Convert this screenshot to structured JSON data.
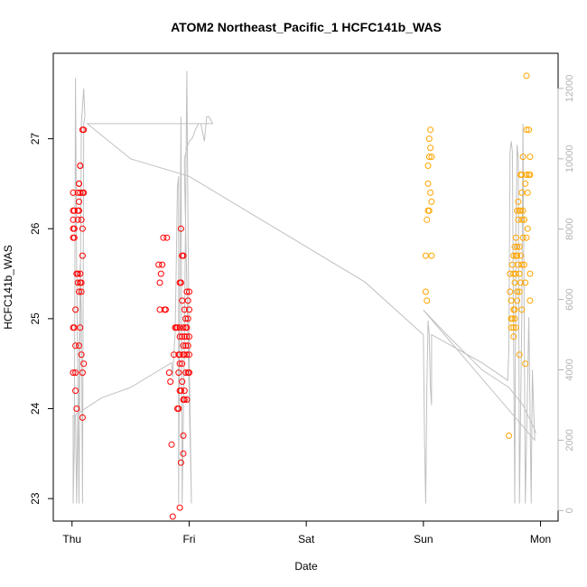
{
  "chart_data": {
    "type": "scatter",
    "title": "ATOM2 Northeast_Pacific_1 HCFC141b_WAS",
    "xlabel": "Date",
    "ylabel": "HCFC141b_WAS",
    "x_tick_labels": [
      "Thu",
      "Fri",
      "Sat",
      "Sun",
      "Mon"
    ],
    "xlim_days": [
      -0.16,
      4.15
    ],
    "ylim": [
      22.75,
      27.95
    ],
    "y_ticks": [
      23,
      24,
      25,
      26,
      27
    ],
    "y2lim": [
      -300,
      13000
    ],
    "y2_ticks": [
      0,
      2000,
      4000,
      6000,
      8000,
      10000,
      12000
    ],
    "grid": false,
    "legend": "none",
    "colors": {
      "red_series": "#ff0000",
      "orange_series": "#ffa500",
      "altitude_line": "#c0c0c0",
      "axis": "#000000",
      "right_axis": "#b3b3b3"
    },
    "series": [
      {
        "color": "red",
        "points": [
          [
            0.01,
            26.4
          ],
          [
            0.01,
            26.2
          ],
          [
            0.01,
            26.1
          ],
          [
            0.01,
            26.0
          ],
          [
            0.01,
            25.9
          ],
          [
            0.01,
            24.9
          ],
          [
            0.01,
            24.4
          ],
          [
            0.02,
            26.2
          ],
          [
            0.02,
            26.0
          ],
          [
            0.02,
            25.9
          ],
          [
            0.02,
            24.9
          ],
          [
            0.03,
            25.1
          ],
          [
            0.03,
            24.7
          ],
          [
            0.03,
            24.4
          ],
          [
            0.03,
            24.2
          ],
          [
            0.04,
            25.5
          ],
          [
            0.04,
            24.0
          ],
          [
            0.05,
            26.4
          ],
          [
            0.05,
            26.2
          ],
          [
            0.05,
            26.1
          ],
          [
            0.05,
            25.5
          ],
          [
            0.05,
            25.4
          ],
          [
            0.06,
            26.5
          ],
          [
            0.06,
            26.5
          ],
          [
            0.06,
            26.3
          ],
          [
            0.06,
            26.2
          ],
          [
            0.06,
            25.3
          ],
          [
            0.06,
            24.7
          ],
          [
            0.07,
            26.7
          ],
          [
            0.07,
            26.7
          ],
          [
            0.07,
            26.4
          ],
          [
            0.07,
            25.5
          ],
          [
            0.07,
            25.4
          ],
          [
            0.07,
            24.9
          ],
          [
            0.08,
            26.1
          ],
          [
            0.08,
            25.4
          ],
          [
            0.08,
            25.3
          ],
          [
            0.08,
            24.6
          ],
          [
            0.09,
            27.1
          ],
          [
            0.09,
            26.4
          ],
          [
            0.09,
            26.0
          ],
          [
            0.09,
            25.7
          ],
          [
            0.09,
            24.4
          ],
          [
            0.09,
            23.9
          ],
          [
            0.1,
            27.1
          ],
          [
            0.1,
            26.4
          ],
          [
            0.1,
            24.5
          ],
          [
            0.74,
            25.6
          ],
          [
            0.75,
            25.4
          ],
          [
            0.75,
            25.1
          ],
          [
            0.76,
            25.5
          ],
          [
            0.77,
            25.6
          ],
          [
            0.78,
            25.9
          ],
          [
            0.79,
            25.1
          ],
          [
            0.8,
            25.1
          ],
          [
            0.81,
            25.9
          ],
          [
            0.83,
            24.4
          ],
          [
            0.84,
            24.3
          ],
          [
            0.85,
            23.6
          ],
          [
            0.86,
            22.8
          ],
          [
            0.87,
            24.6
          ],
          [
            0.88,
            24.9
          ],
          [
            0.9,
            24.0
          ],
          [
            0.91,
            24.0
          ],
          [
            0.91,
            24.4
          ],
          [
            0.91,
            24.6
          ],
          [
            0.92,
            25.4
          ],
          [
            0.92,
            24.8
          ],
          [
            0.92,
            24.9
          ],
          [
            0.92,
            24.5
          ],
          [
            0.92,
            24.2
          ],
          [
            0.92,
            22.9
          ],
          [
            0.93,
            23.4
          ],
          [
            0.93,
            26.0
          ],
          [
            0.93,
            25.4
          ],
          [
            0.93,
            24.2
          ],
          [
            0.94,
            25.7
          ],
          [
            0.94,
            25.2
          ],
          [
            0.94,
            24.8
          ],
          [
            0.94,
            24.5
          ],
          [
            0.94,
            24.3
          ],
          [
            0.95,
            25.7
          ],
          [
            0.95,
            24.9
          ],
          [
            0.95,
            24.7
          ],
          [
            0.95,
            24.6
          ],
          [
            0.95,
            24.1
          ],
          [
            0.95,
            23.7
          ],
          [
            0.95,
            23.5
          ],
          [
            0.96,
            25.1
          ],
          [
            0.96,
            24.8
          ],
          [
            0.96,
            24.6
          ],
          [
            0.96,
            24.2
          ],
          [
            0.97,
            25.0
          ],
          [
            0.97,
            24.7
          ],
          [
            0.97,
            24.4
          ],
          [
            0.98,
            25.3
          ],
          [
            0.98,
            24.9
          ],
          [
            0.98,
            24.8
          ],
          [
            0.98,
            24.6
          ],
          [
            0.98,
            24.1
          ],
          [
            0.99,
            25.2
          ],
          [
            0.99,
            25.0
          ],
          [
            0.99,
            24.7
          ],
          [
            0.99,
            24.4
          ],
          [
            1.0,
            25.3
          ],
          [
            1.0,
            25.1
          ],
          [
            1.0,
            24.8
          ],
          [
            1.0,
            24.6
          ],
          [
            1.0,
            24.4
          ],
          [
            0.89,
            24.9
          ],
          [
            0.9,
            24.9
          ],
          [
            0.92,
            24.6
          ],
          [
            0.96,
            24.1
          ],
          [
            0.97,
            24.9
          ]
        ]
      },
      {
        "color": "orange",
        "points": [
          [
            3.02,
            25.7
          ],
          [
            3.02,
            25.3
          ],
          [
            3.03,
            25.2
          ],
          [
            3.03,
            26.1
          ],
          [
            3.04,
            26.2
          ],
          [
            3.04,
            26.5
          ],
          [
            3.04,
            26.7
          ],
          [
            3.05,
            26.2
          ],
          [
            3.05,
            26.8
          ],
          [
            3.05,
            27.0
          ],
          [
            3.06,
            27.1
          ],
          [
            3.06,
            26.9
          ],
          [
            3.06,
            26.4
          ],
          [
            3.07,
            26.3
          ],
          [
            3.07,
            26.8
          ],
          [
            3.07,
            25.7
          ],
          [
            3.73,
            23.7
          ],
          [
            3.74,
            25.5
          ],
          [
            3.74,
            25.3
          ],
          [
            3.75,
            25.2
          ],
          [
            3.75,
            25.0
          ],
          [
            3.75,
            24.9
          ],
          [
            3.76,
            25.6
          ],
          [
            3.76,
            25.0
          ],
          [
            3.77,
            25.7
          ],
          [
            3.77,
            25.5
          ],
          [
            3.77,
            25.1
          ],
          [
            3.77,
            24.9
          ],
          [
            3.77,
            24.8
          ],
          [
            3.78,
            25.8
          ],
          [
            3.78,
            25.4
          ],
          [
            3.78,
            25.1
          ],
          [
            3.78,
            25.0
          ],
          [
            3.79,
            25.9
          ],
          [
            3.79,
            25.7
          ],
          [
            3.79,
            25.5
          ],
          [
            3.79,
            24.9
          ],
          [
            3.8,
            26.2
          ],
          [
            3.8,
            25.8
          ],
          [
            3.8,
            25.3
          ],
          [
            3.8,
            25.2
          ],
          [
            3.81,
            26.3
          ],
          [
            3.81,
            26.1
          ],
          [
            3.81,
            25.6
          ],
          [
            3.82,
            26.2
          ],
          [
            3.82,
            25.8
          ],
          [
            3.82,
            25.5
          ],
          [
            3.82,
            25.3
          ],
          [
            3.82,
            24.6
          ],
          [
            3.83,
            26.6
          ],
          [
            3.83,
            26.2
          ],
          [
            3.83,
            25.7
          ],
          [
            3.83,
            25.4
          ],
          [
            3.84,
            26.6
          ],
          [
            3.84,
            26.4
          ],
          [
            3.84,
            26.1
          ],
          [
            3.84,
            25.6
          ],
          [
            3.85,
            26.8
          ],
          [
            3.85,
            26.2
          ],
          [
            3.85,
            25.9
          ],
          [
            3.86,
            26.1
          ],
          [
            3.86,
            25.6
          ],
          [
            3.87,
            26.5
          ],
          [
            3.87,
            25.4
          ],
          [
            3.87,
            24.5
          ],
          [
            3.88,
            27.7
          ],
          [
            3.88,
            27.1
          ],
          [
            3.88,
            26.6
          ],
          [
            3.88,
            25.9
          ],
          [
            3.89,
            26.4
          ],
          [
            3.89,
            26.0
          ],
          [
            3.9,
            27.1
          ],
          [
            3.9,
            26.6
          ],
          [
            3.91,
            26.8
          ],
          [
            3.91,
            26.6
          ],
          [
            3.91,
            25.5
          ],
          [
            3.91,
            25.2
          ],
          [
            3.8,
            25.7
          ],
          [
            3.84,
            25.1
          ],
          [
            3.86,
            26.1
          ]
        ]
      }
    ],
    "altitude_line": {
      "points": [
        [
          0.0,
          2700
        ],
        [
          0.01,
          2700
        ],
        [
          0.01,
          200
        ],
        [
          0.02,
          1800
        ],
        [
          0.03,
          12300
        ],
        [
          0.04,
          7000
        ],
        [
          0.06,
          200
        ],
        [
          0.08,
          11000
        ],
        [
          0.1,
          12000
        ],
        [
          0.11,
          11200
        ],
        [
          0.1,
          11000
        ],
        [
          0.09,
          200
        ],
        [
          0.08,
          5600
        ],
        [
          0.07,
          7000
        ],
        [
          0.06,
          3000
        ],
        [
          0.05,
          2800
        ],
        [
          0.04,
          200
        ],
        [
          0.03,
          2700
        ],
        [
          0.02,
          2700
        ],
        [
          0.25,
          3200
        ],
        [
          0.5,
          3500
        ],
        [
          0.75,
          4000
        ],
        [
          0.8,
          4100
        ],
        [
          0.85,
          4200
        ],
        [
          0.86,
          3800
        ],
        [
          0.87,
          4500
        ],
        [
          0.88,
          5000
        ],
        [
          0.89,
          7000
        ],
        [
          0.9,
          9200
        ],
        [
          0.91,
          9500
        ],
        [
          0.91,
          200
        ],
        [
          0.92,
          6000
        ],
        [
          0.93,
          11200
        ],
        [
          0.94,
          200
        ],
        [
          0.96,
          5000
        ],
        [
          0.98,
          12500
        ],
        [
          0.99,
          8000
        ],
        [
          1.0,
          4400
        ],
        [
          1.02,
          200
        ],
        [
          0.96,
          9600
        ],
        [
          0.96,
          10000
        ],
        [
          0.98,
          10300
        ],
        [
          1.0,
          10500
        ],
        [
          1.03,
          10600
        ],
        [
          1.05,
          10800
        ],
        [
          1.08,
          11000
        ],
        [
          1.1,
          11000
        ],
        [
          1.13,
          10500
        ],
        [
          1.15,
          11200
        ],
        [
          1.17,
          11200
        ],
        [
          1.2,
          11000
        ],
        [
          0.13,
          11000
        ],
        [
          0.5,
          10000
        ],
        [
          1.0,
          9500
        ],
        [
          1.5,
          8500
        ],
        [
          2.0,
          7500
        ],
        [
          2.5,
          6500
        ],
        [
          3.0,
          5000
        ],
        [
          3.01,
          2000
        ],
        [
          3.02,
          200
        ],
        [
          3.03,
          3500
        ],
        [
          3.04,
          5400
        ],
        [
          3.05,
          5000
        ],
        [
          3.06,
          3500
        ],
        [
          3.07,
          3000
        ],
        [
          3.07,
          5000
        ],
        [
          3.5,
          4200
        ],
        [
          3.72,
          3700
        ],
        [
          3.73,
          4600
        ],
        [
          3.74,
          10200
        ],
        [
          3.75,
          10500
        ],
        [
          3.76,
          10200
        ],
        [
          3.77,
          5000
        ],
        [
          3.78,
          200
        ],
        [
          3.79,
          8000
        ],
        [
          3.8,
          10400
        ],
        [
          3.81,
          10000
        ],
        [
          3.82,
          200
        ],
        [
          3.84,
          5500
        ],
        [
          3.85,
          11000
        ],
        [
          3.87,
          200
        ],
        [
          3.9,
          5500
        ],
        [
          3.92,
          200
        ],
        [
          3.93,
          4000
        ],
        [
          3.95,
          2000
        ],
        [
          3.0,
          5700
        ],
        [
          3.2,
          5000
        ],
        [
          3.5,
          4000
        ],
        [
          3.73,
          3500
        ],
        [
          3.85,
          3000
        ],
        [
          3.95,
          2300
        ],
        [
          3.96,
          2200
        ]
      ]
    }
  }
}
